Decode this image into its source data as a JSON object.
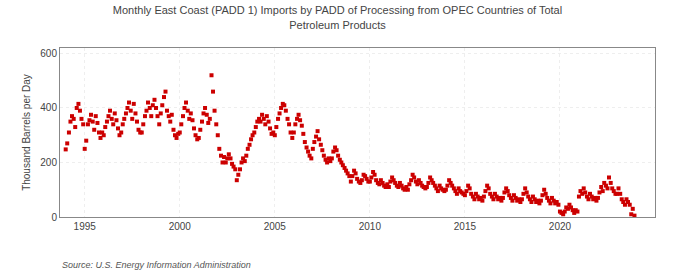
{
  "chart_data": {
    "type": "scatter",
    "title": "Monthly East Coast (PADD 1) Imports by PADD of Processing from OPEC Countries of Total\nPetroleum Products",
    "ylabel": "Thousand Barrels per Day",
    "annotations": [
      "Source: U.S. Energy Information Administration"
    ],
    "color": "#cc0000",
    "marker": "square",
    "grid": true,
    "xlim": [
      1993.7,
      2025.0
    ],
    "ylim": [
      0,
      620
    ],
    "xticks": [
      1995,
      2000,
      2005,
      2010,
      2015,
      2020
    ],
    "yticks": [
      0,
      200,
      400,
      600
    ],
    "x": [
      1994.0,
      1994.08,
      1994.17,
      1994.25,
      1994.33,
      1994.42,
      1994.5,
      1994.58,
      1994.67,
      1994.75,
      1994.83,
      1994.92,
      1995.0,
      1995.08,
      1995.17,
      1995.25,
      1995.33,
      1995.42,
      1995.5,
      1995.58,
      1995.67,
      1995.75,
      1995.83,
      1995.92,
      1996.0,
      1996.08,
      1996.17,
      1996.25,
      1996.33,
      1996.42,
      1996.5,
      1996.58,
      1996.67,
      1996.75,
      1996.83,
      1996.92,
      1997.0,
      1997.08,
      1997.17,
      1997.25,
      1997.33,
      1997.42,
      1997.5,
      1997.58,
      1997.67,
      1997.75,
      1997.83,
      1997.92,
      1998.0,
      1998.08,
      1998.17,
      1998.25,
      1998.33,
      1998.42,
      1998.5,
      1998.58,
      1998.67,
      1998.75,
      1998.83,
      1998.92,
      1999.0,
      1999.08,
      1999.17,
      1999.25,
      1999.33,
      1999.42,
      1999.5,
      1999.58,
      1999.67,
      1999.75,
      1999.83,
      1999.92,
      2000.0,
      2000.08,
      2000.17,
      2000.25,
      2000.33,
      2000.42,
      2000.5,
      2000.58,
      2000.67,
      2000.75,
      2000.83,
      2000.92,
      2001.0,
      2001.08,
      2001.17,
      2001.25,
      2001.33,
      2001.42,
      2001.5,
      2001.58,
      2001.67,
      2001.75,
      2001.83,
      2001.92,
      2002.0,
      2002.08,
      2002.17,
      2002.25,
      2002.33,
      2002.42,
      2002.5,
      2002.58,
      2002.67,
      2002.75,
      2002.83,
      2002.92,
      2003.0,
      2003.08,
      2003.17,
      2003.25,
      2003.33,
      2003.42,
      2003.5,
      2003.58,
      2003.67,
      2003.75,
      2003.83,
      2003.92,
      2004.0,
      2004.08,
      2004.17,
      2004.25,
      2004.33,
      2004.42,
      2004.5,
      2004.58,
      2004.67,
      2004.75,
      2004.83,
      2004.92,
      2005.0,
      2005.08,
      2005.17,
      2005.25,
      2005.33,
      2005.42,
      2005.5,
      2005.58,
      2005.67,
      2005.75,
      2005.83,
      2005.92,
      2006.0,
      2006.08,
      2006.17,
      2006.25,
      2006.33,
      2006.42,
      2006.5,
      2006.58,
      2006.67,
      2006.75,
      2006.83,
      2006.92,
      2007.0,
      2007.08,
      2007.17,
      2007.25,
      2007.33,
      2007.42,
      2007.5,
      2007.58,
      2007.67,
      2007.75,
      2007.83,
      2007.92,
      2008.0,
      2008.08,
      2008.17,
      2008.25,
      2008.33,
      2008.42,
      2008.5,
      2008.58,
      2008.67,
      2008.75,
      2008.83,
      2008.92,
      2009.0,
      2009.08,
      2009.17,
      2009.25,
      2009.33,
      2009.42,
      2009.5,
      2009.58,
      2009.67,
      2009.75,
      2009.83,
      2009.92,
      2010.0,
      2010.08,
      2010.17,
      2010.25,
      2010.33,
      2010.42,
      2010.5,
      2010.58,
      2010.67,
      2010.75,
      2010.83,
      2010.92,
      2011.0,
      2011.08,
      2011.17,
      2011.25,
      2011.33,
      2011.42,
      2011.5,
      2011.58,
      2011.67,
      2011.75,
      2011.83,
      2011.92,
      2012.0,
      2012.08,
      2012.17,
      2012.25,
      2012.33,
      2012.42,
      2012.5,
      2012.58,
      2012.67,
      2012.75,
      2012.83,
      2012.92,
      2013.0,
      2013.08,
      2013.17,
      2013.25,
      2013.33,
      2013.42,
      2013.5,
      2013.58,
      2013.67,
      2013.75,
      2013.83,
      2013.92,
      2014.0,
      2014.08,
      2014.17,
      2014.25,
      2014.33,
      2014.42,
      2014.5,
      2014.58,
      2014.67,
      2014.75,
      2014.83,
      2014.92,
      2015.0,
      2015.08,
      2015.17,
      2015.25,
      2015.33,
      2015.42,
      2015.5,
      2015.58,
      2015.67,
      2015.75,
      2015.83,
      2015.92,
      2016.0,
      2016.08,
      2016.17,
      2016.25,
      2016.33,
      2016.42,
      2016.5,
      2016.58,
      2016.67,
      2016.75,
      2016.83,
      2016.92,
      2017.0,
      2017.08,
      2017.17,
      2017.25,
      2017.33,
      2017.42,
      2017.5,
      2017.58,
      2017.67,
      2017.75,
      2017.83,
      2017.92,
      2018.0,
      2018.08,
      2018.17,
      2018.25,
      2018.33,
      2018.42,
      2018.5,
      2018.58,
      2018.67,
      2018.75,
      2018.83,
      2018.92,
      2019.0,
      2019.08,
      2019.17,
      2019.25,
      2019.33,
      2019.42,
      2019.5,
      2019.58,
      2019.67,
      2019.75,
      2019.83,
      2019.92,
      2020.0,
      2020.08,
      2020.17,
      2020.25,
      2020.33,
      2020.42,
      2020.5,
      2020.58,
      2020.67,
      2020.75,
      2020.83,
      2020.92,
      2021.0,
      2021.08,
      2021.17,
      2021.25,
      2021.33,
      2021.42,
      2021.5,
      2021.58,
      2021.67,
      2021.75,
      2021.83,
      2021.92,
      2022.0,
      2022.08,
      2022.17,
      2022.25,
      2022.33,
      2022.42,
      2022.5,
      2022.58,
      2022.67,
      2022.75,
      2022.83,
      2022.92,
      2023.0,
      2023.08,
      2023.17,
      2023.25,
      2023.33,
      2023.42,
      2023.5,
      2023.58,
      2023.67,
      2023.75,
      2023.83,
      2023.92
    ],
    "values": [
      248,
      270,
      310,
      350,
      370,
      360,
      330,
      400,
      415,
      390,
      360,
      340,
      250,
      280,
      340,
      355,
      375,
      350,
      320,
      370,
      345,
      310,
      290,
      310,
      300,
      330,
      350,
      370,
      390,
      360,
      340,
      380,
      355,
      325,
      300,
      310,
      340,
      360,
      380,
      400,
      420,
      390,
      360,
      415,
      380,
      350,
      320,
      310,
      310,
      340,
      370,
      390,
      420,
      400,
      370,
      410,
      430,
      400,
      370,
      340,
      380,
      410,
      440,
      460,
      390,
      370,
      350,
      375,
      320,
      300,
      290,
      305,
      310,
      340,
      370,
      400,
      420,
      390,
      360,
      380,
      355,
      325,
      300,
      285,
      290,
      320,
      350,
      380,
      400,
      375,
      345,
      360,
      520,
      460,
      390,
      340,
      300,
      250,
      225,
      200,
      220,
      200,
      215,
      230,
      215,
      195,
      185,
      175,
      135,
      155,
      175,
      200,
      215,
      205,
      225,
      250,
      265,
      285,
      300,
      310,
      330,
      350,
      360,
      350,
      375,
      360,
      340,
      370,
      350,
      325,
      305,
      310,
      300,
      330,
      360,
      380,
      400,
      415,
      410,
      390,
      360,
      340,
      310,
      290,
      310,
      340,
      360,
      375,
      355,
      335,
      305,
      275,
      255,
      240,
      225,
      215,
      250,
      275,
      295,
      315,
      285,
      265,
      245,
      225,
      210,
      200,
      215,
      205,
      215,
      240,
      255,
      245,
      225,
      210,
      200,
      190,
      180,
      170,
      160,
      150,
      130,
      150,
      170,
      160,
      140,
      130,
      125,
      135,
      155,
      150,
      140,
      130,
      130,
      145,
      165,
      155,
      135,
      125,
      120,
      135,
      125,
      115,
      110,
      120,
      110,
      130,
      145,
      135,
      125,
      115,
      110,
      125,
      115,
      105,
      100,
      110,
      100,
      120,
      135,
      155,
      145,
      130,
      120,
      135,
      125,
      115,
      110,
      105,
      110,
      125,
      145,
      135,
      125,
      115,
      105,
      95,
      115,
      105,
      100,
      95,
      100,
      115,
      135,
      125,
      115,
      105,
      95,
      85,
      105,
      95,
      90,
      85,
      80,
      95,
      115,
      105,
      85,
      75,
      65,
      85,
      75,
      65,
      70,
      60,
      75,
      95,
      115,
      105,
      85,
      75,
      65,
      85,
      75,
      65,
      70,
      60,
      70,
      90,
      105,
      95,
      80,
      70,
      60,
      80,
      70,
      60,
      65,
      55,
      65,
      85,
      105,
      90,
      75,
      65,
      55,
      75,
      65,
      55,
      60,
      50,
      60,
      80,
      100,
      85,
      70,
      60,
      50,
      70,
      60,
      50,
      55,
      45,
      20,
      15,
      10,
      20,
      35,
      30,
      45,
      35,
      25,
      15,
      25,
      20,
      75,
      95,
      85,
      105,
      90,
      75,
      65,
      85,
      75,
      65,
      70,
      60,
      70,
      90,
      110,
      95,
      125,
      115,
      105,
      145,
      125,
      105,
      95,
      85,
      85,
      105,
      85,
      65,
      55,
      45,
      65,
      55,
      45,
      10,
      30,
      5
    ]
  }
}
